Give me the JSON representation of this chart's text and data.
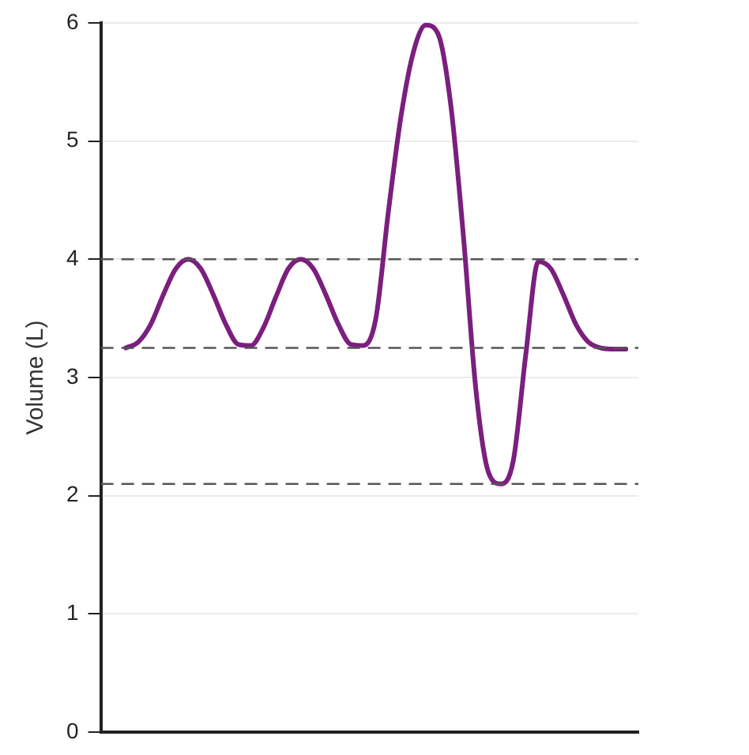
{
  "chart_data": {
    "type": "line",
    "ylabel": "Volume (L)",
    "categories": [
      null,
      null,
      null,
      null,
      null,
      null,
      null,
      null,
      null,
      null,
      null,
      null,
      null,
      null,
      null,
      null,
      null,
      null,
      null,
      null,
      null,
      null,
      null,
      null,
      null,
      null,
      null,
      null,
      null,
      null,
      null,
      null,
      null,
      null,
      null,
      null,
      null,
      null,
      null,
      null,
      null,
      null,
      null,
      null
    ],
    "series": [
      {
        "color": "#7b1f7e",
        "values": [
          null,
          null,
          3.25,
          3.3,
          3.45,
          3.7,
          3.92,
          4.0,
          3.92,
          3.7,
          3.45,
          3.28,
          3.27,
          3.42,
          3.68,
          3.92,
          4.0,
          3.92,
          3.7,
          3.45,
          3.28,
          3.27,
          3.5,
          4.4,
          5.2,
          5.75,
          5.98,
          5.9,
          5.3,
          4.2,
          2.9,
          2.2,
          2.1,
          2.3,
          3.2,
          3.98,
          3.92,
          3.7,
          3.45,
          3.3,
          3.25,
          3.24,
          3.24,
          null
        ]
      }
    ],
    "ylim": [
      0,
      6
    ],
    "yticks": [
      0,
      1,
      2,
      3,
      4,
      5,
      6
    ],
    "grid": "y",
    "tick_labels": "y",
    "marker": "none",
    "line_style": "solid",
    "ref_lines": [
      {
        "axis": "y",
        "value": 4,
        "color": "#555555",
        "line_style": "dashed"
      },
      {
        "axis": "y",
        "value": 3.25,
        "color": "#555555",
        "line_style": "dashed"
      },
      {
        "axis": "y",
        "value": 2.1,
        "color": "#555555",
        "line_style": "dashed"
      }
    ]
  }
}
